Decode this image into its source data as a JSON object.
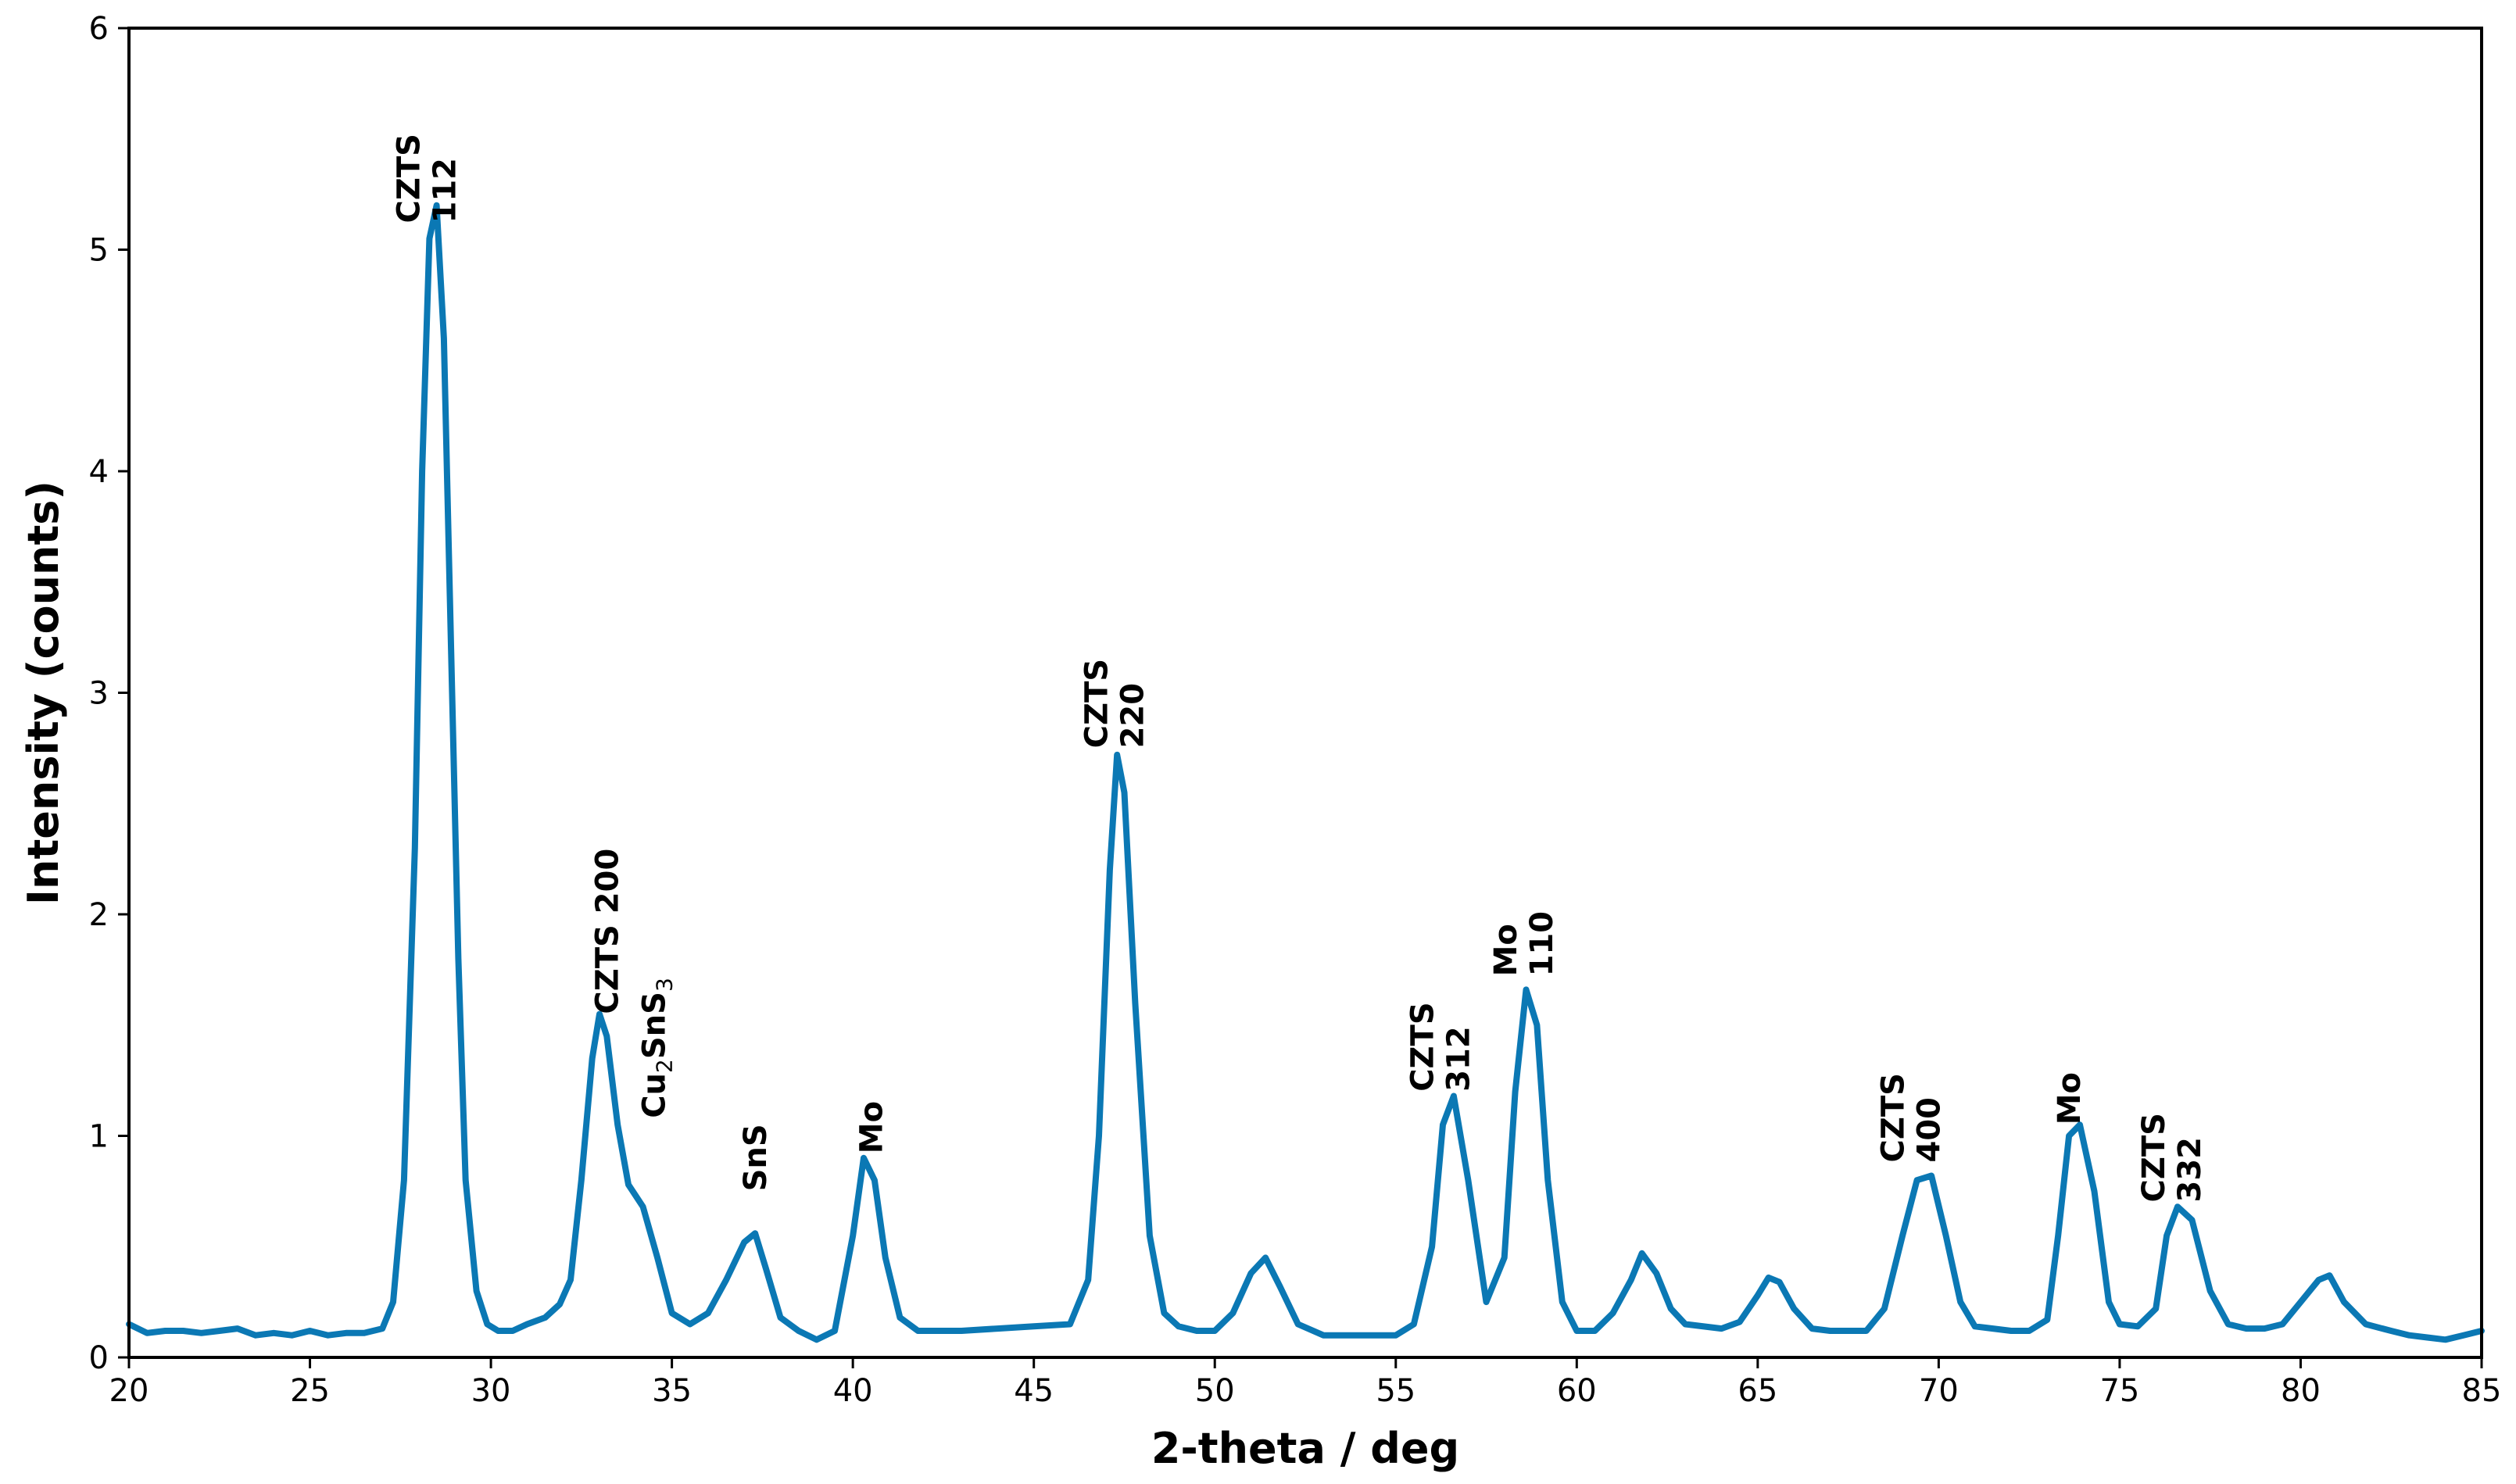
{
  "chart_data": {
    "type": "line",
    "title": "",
    "xlabel": "2-theta / deg",
    "ylabel": "Intensity (counts)",
    "xlim": [
      20,
      85
    ],
    "ylim": [
      0,
      6
    ],
    "xticks": [
      20,
      25,
      30,
      35,
      40,
      45,
      50,
      55,
      60,
      65,
      70,
      75,
      80,
      85
    ],
    "yticks": [
      0,
      1,
      2,
      3,
      4,
      5,
      6
    ],
    "grid": false,
    "legend": "none",
    "series_color": "#0b78b4",
    "series": [
      {
        "x": [
          20,
          20.5,
          21,
          21.5,
          22,
          22.5,
          23,
          23.5,
          24,
          24.5,
          25,
          25.5,
          26,
          26.5,
          27,
          27.3,
          27.6,
          27.9,
          28.1,
          28.3,
          28.5,
          28.7,
          28.9,
          29.1,
          29.3,
          29.6,
          29.9,
          30.2,
          30.6,
          31,
          31.5,
          31.9,
          32.2,
          32.5,
          32.8,
          33,
          33.2,
          33.5,
          33.8,
          34.2,
          34.6,
          35,
          35.5,
          36,
          36.5,
          37,
          37.3,
          37.6,
          38,
          38.5,
          39,
          39.5,
          40,
          40.3,
          40.6,
          40.9,
          41.3,
          41.8,
          42.5,
          43,
          44,
          45,
          46,
          46.5,
          46.8,
          47.1,
          47.3,
          47.5,
          47.8,
          48.2,
          48.6,
          49,
          49.5,
          50,
          50.5,
          51,
          51.4,
          51.8,
          52.3,
          53,
          54,
          55,
          55.5,
          56,
          56.3,
          56.6,
          57,
          57.5,
          58,
          58.3,
          58.6,
          58.9,
          59.2,
          59.6,
          60,
          60.5,
          61,
          61.5,
          61.8,
          62.2,
          62.6,
          63,
          64,
          64.5,
          65,
          65.3,
          65.6,
          66,
          66.5,
          67,
          67.5,
          68,
          68.5,
          69,
          69.4,
          69.8,
          70.2,
          70.6,
          71,
          72,
          72.5,
          73,
          73.3,
          73.6,
          73.9,
          74.3,
          74.7,
          75,
          75.5,
          76,
          76.3,
          76.6,
          77,
          77.5,
          78,
          78.5,
          79,
          79.5,
          80,
          80.5,
          80.8,
          81.2,
          81.8,
          82.5,
          83,
          83.5,
          84,
          84.5,
          85
        ],
        "y": [
          0.15,
          0.11,
          0.12,
          0.12,
          0.11,
          0.12,
          0.13,
          0.1,
          0.11,
          0.1,
          0.12,
          0.1,
          0.11,
          0.11,
          0.13,
          0.25,
          0.8,
          2.3,
          4.0,
          5.05,
          5.2,
          4.6,
          3.2,
          1.8,
          0.8,
          0.3,
          0.15,
          0.12,
          0.12,
          0.15,
          0.18,
          0.24,
          0.35,
          0.8,
          1.35,
          1.55,
          1.45,
          1.05,
          0.78,
          0.68,
          0.45,
          0.2,
          0.15,
          0.2,
          0.35,
          0.52,
          0.56,
          0.4,
          0.18,
          0.12,
          0.08,
          0.12,
          0.55,
          0.9,
          0.8,
          0.45,
          0.18,
          0.12,
          0.12,
          0.12,
          0.13,
          0.14,
          0.15,
          0.35,
          1.0,
          2.2,
          2.72,
          2.55,
          1.6,
          0.55,
          0.2,
          0.14,
          0.12,
          0.12,
          0.2,
          0.38,
          0.45,
          0.32,
          0.15,
          0.1,
          0.1,
          0.1,
          0.15,
          0.5,
          1.05,
          1.18,
          0.8,
          0.25,
          0.45,
          1.2,
          1.66,
          1.5,
          0.8,
          0.25,
          0.12,
          0.12,
          0.2,
          0.35,
          0.47,
          0.38,
          0.22,
          0.15,
          0.13,
          0.16,
          0.28,
          0.36,
          0.34,
          0.22,
          0.13,
          0.12,
          0.12,
          0.12,
          0.22,
          0.55,
          0.8,
          0.82,
          0.55,
          0.25,
          0.14,
          0.12,
          0.12,
          0.17,
          0.55,
          1.0,
          1.05,
          0.75,
          0.25,
          0.15,
          0.14,
          0.22,
          0.55,
          0.68,
          0.62,
          0.3,
          0.15,
          0.13,
          0.13,
          0.15,
          0.25,
          0.35,
          0.37,
          0.25,
          0.15,
          0.12,
          0.1,
          0.09,
          0.08,
          0.1,
          0.12
        ]
      }
    ],
    "annotations": [
      {
        "lines": [
          "CZTS",
          "112"
        ],
        "x": 28.2,
        "y": 5.12
      },
      {
        "lines": [
          "CZTS 200"
        ],
        "x": 33.2,
        "y": 1.55
      },
      {
        "lines": [
          "Cu",
          "2",
          "SnS",
          "3"
        ],
        "x": 34.5,
        "y": 1.08
      },
      {
        "lines": [
          "SnS"
        ],
        "x": 37.3,
        "y": 0.75
      },
      {
        "lines": [
          "Mo"
        ],
        "x": 40.5,
        "y": 0.92
      },
      {
        "lines": [
          "CZTS",
          "220"
        ],
        "x": 47.2,
        "y": 2.75
      },
      {
        "lines": [
          "CZTS",
          "312"
        ],
        "x": 56.2,
        "y": 1.2
      },
      {
        "lines": [
          "Mo",
          "110"
        ],
        "x": 58.5,
        "y": 1.72
      },
      {
        "lines": [
          "CZTS",
          "400"
        ],
        "x": 69.2,
        "y": 0.88
      },
      {
        "lines": [
          "Mo"
        ],
        "x": 73.6,
        "y": 1.05
      },
      {
        "lines": [
          "CZTS",
          "332"
        ],
        "x": 76.4,
        "y": 0.7
      }
    ]
  }
}
